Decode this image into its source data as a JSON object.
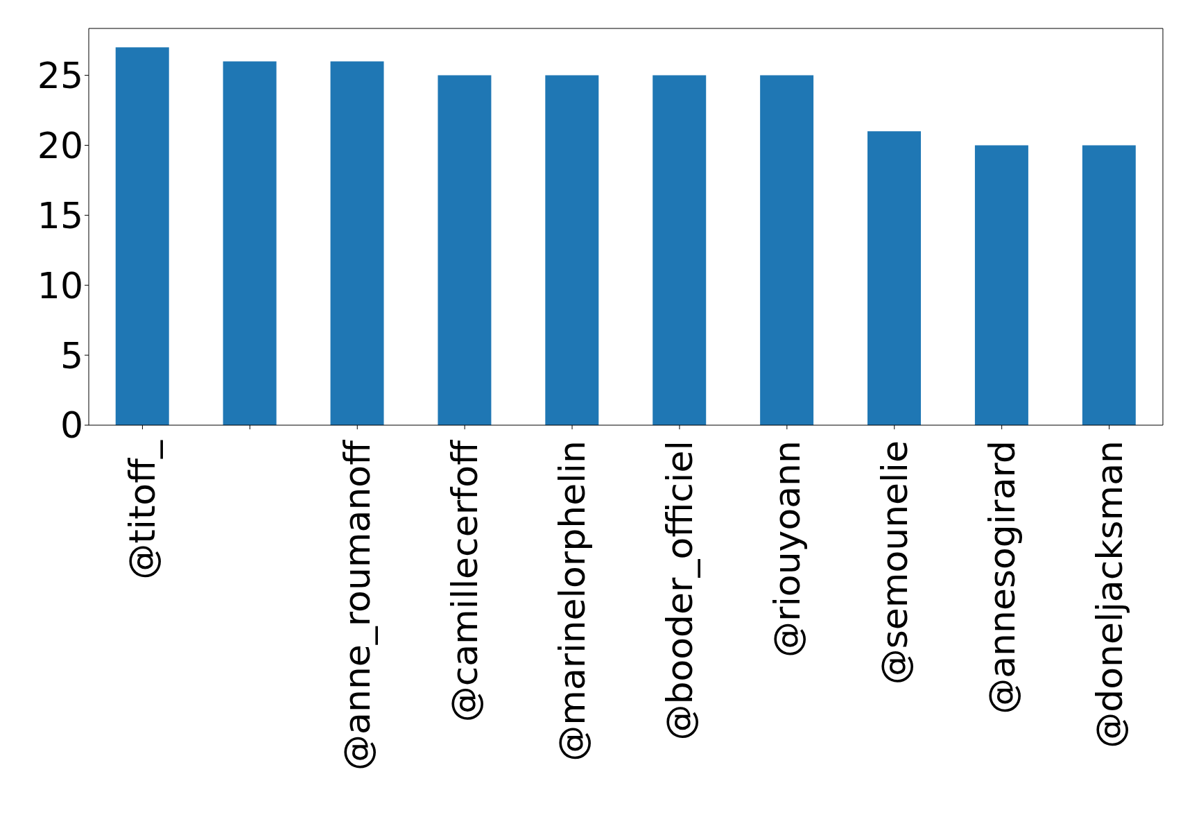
{
  "chart_data": {
    "type": "bar",
    "categories": [
      "@titoff_",
      null,
      "@anne_roumanoff",
      "@camillecerfoff",
      "@marinelorphelin",
      "@booder_officiel",
      "@riouyoann",
      "@semounelie",
      "@annesogirard",
      "@doneljacksman"
    ],
    "values": [
      27,
      26,
      26,
      25,
      25,
      25,
      25,
      21,
      20,
      20
    ],
    "color": "#1f77b4",
    "ylim": [
      0,
      28.35
    ],
    "yticks": [
      0,
      5,
      10,
      15,
      20,
      25
    ],
    "grid": false,
    "legend": false
  }
}
